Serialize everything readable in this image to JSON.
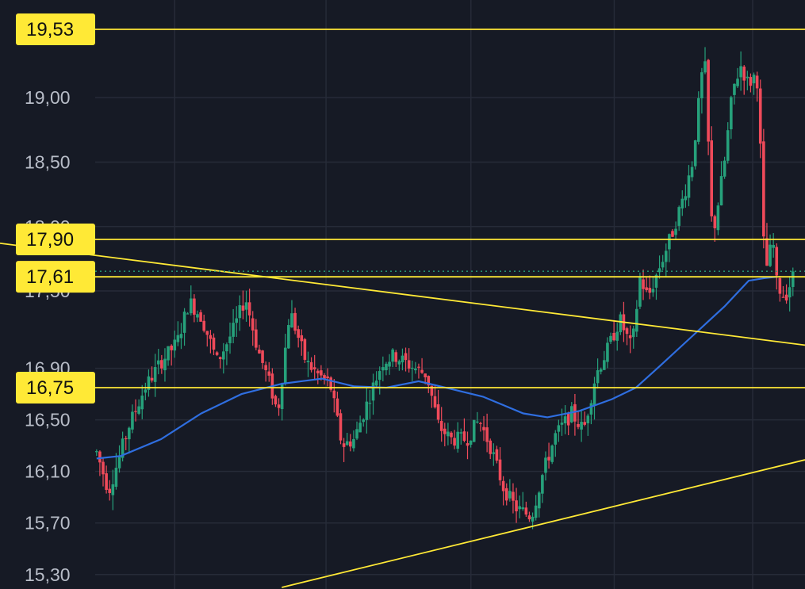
{
  "chart_data": {
    "type": "candlestick",
    "title": "",
    "xlabel": "",
    "ylabel": "",
    "ylim": [
      15.2,
      19.7
    ],
    "y_ticks": [
      {
        "value": 19.0,
        "label": "19,00"
      },
      {
        "value": 18.5,
        "label": "18,50"
      },
      {
        "value": 18.0,
        "label": "18,00"
      },
      {
        "value": 17.5,
        "label": "17,50"
      },
      {
        "value": 16.9,
        "label": "16,90"
      },
      {
        "value": 16.5,
        "label": "16,50"
      },
      {
        "value": 16.1,
        "label": "16,10"
      },
      {
        "value": 15.7,
        "label": "15,70"
      },
      {
        "value": 15.3,
        "label": "15,30"
      }
    ],
    "horizontal_levels": [
      {
        "value": 19.53,
        "label": "19,53"
      },
      {
        "value": 17.9,
        "label": "17,90"
      },
      {
        "value": 17.61,
        "label": "17,61"
      },
      {
        "value": 16.75,
        "label": "16,75"
      }
    ],
    "current_price": 17.61,
    "trendlines": [
      {
        "name": "descending resistance",
        "from": [
          0,
          17.87
        ],
        "to": [
          1,
          17.08
        ]
      },
      {
        "name": "ascending support",
        "from": [
          0.35,
          15.2
        ],
        "to": [
          1,
          16.19
        ]
      }
    ],
    "moving_average": [
      [
        0.12,
        16.2
      ],
      [
        0.15,
        16.22
      ],
      [
        0.2,
        16.35
      ],
      [
        0.25,
        16.55
      ],
      [
        0.3,
        16.7
      ],
      [
        0.35,
        16.78
      ],
      [
        0.4,
        16.82
      ],
      [
        0.44,
        16.76
      ],
      [
        0.48,
        16.75
      ],
      [
        0.52,
        16.8
      ],
      [
        0.56,
        16.74
      ],
      [
        0.6,
        16.68
      ],
      [
        0.65,
        16.55
      ],
      [
        0.68,
        16.52
      ],
      [
        0.72,
        16.57
      ],
      [
        0.76,
        16.66
      ],
      [
        0.79,
        16.75
      ],
      [
        0.82,
        16.92
      ],
      [
        0.86,
        17.15
      ],
      [
        0.9,
        17.38
      ],
      [
        0.93,
        17.58
      ],
      [
        0.95,
        17.6
      ],
      [
        0.965,
        17.61
      ]
    ],
    "price_path": [
      [
        0.12,
        16.25
      ],
      [
        0.135,
        15.95
      ],
      [
        0.16,
        16.45
      ],
      [
        0.18,
        16.75
      ],
      [
        0.2,
        16.95
      ],
      [
        0.22,
        17.1
      ],
      [
        0.235,
        17.42
      ],
      [
        0.25,
        17.3
      ],
      [
        0.27,
        16.95
      ],
      [
        0.29,
        17.2
      ],
      [
        0.305,
        17.45
      ],
      [
        0.32,
        17.05
      ],
      [
        0.335,
        16.78
      ],
      [
        0.345,
        16.55
      ],
      [
        0.36,
        17.35
      ],
      [
        0.38,
        16.95
      ],
      [
        0.395,
        16.85
      ],
      [
        0.41,
        16.78
      ],
      [
        0.425,
        16.3
      ],
      [
        0.44,
        16.35
      ],
      [
        0.46,
        16.7
      ],
      [
        0.475,
        16.95
      ],
      [
        0.49,
        17.0
      ],
      [
        0.51,
        16.92
      ],
      [
        0.53,
        16.85
      ],
      [
        0.545,
        16.45
      ],
      [
        0.56,
        16.35
      ],
      [
        0.58,
        16.35
      ],
      [
        0.595,
        16.5
      ],
      [
        0.61,
        16.28
      ],
      [
        0.625,
        15.98
      ],
      [
        0.64,
        15.82
      ],
      [
        0.66,
        15.75
      ],
      [
        0.675,
        16.1
      ],
      [
        0.69,
        16.38
      ],
      [
        0.71,
        16.55
      ],
      [
        0.725,
        16.42
      ],
      [
        0.74,
        16.85
      ],
      [
        0.755,
        17.05
      ],
      [
        0.77,
        17.28
      ],
      [
        0.785,
        17.05
      ],
      [
        0.795,
        17.6
      ],
      [
        0.805,
        17.45
      ],
      [
        0.82,
        17.7
      ],
      [
        0.835,
        17.95
      ],
      [
        0.85,
        18.25
      ],
      [
        0.86,
        18.5
      ],
      [
        0.875,
        19.35
      ],
      [
        0.885,
        17.9
      ],
      [
        0.9,
        18.5
      ],
      [
        0.91,
        19.05
      ],
      [
        0.92,
        19.25
      ],
      [
        0.93,
        19.1
      ],
      [
        0.94,
        19.2
      ],
      [
        0.945,
        18.55
      ],
      [
        0.95,
        17.62
      ],
      [
        0.96,
        17.9
      ],
      [
        0.965,
        17.55
      ],
      [
        0.975,
        17.45
      ],
      [
        0.985,
        17.61
      ]
    ],
    "colors": {
      "background": "#161a25",
      "grid": "#262b38",
      "up": "#26a17b",
      "down": "#ef4a5a",
      "levels": "#ffe936",
      "moving_average": "#2f6ee0"
    }
  }
}
